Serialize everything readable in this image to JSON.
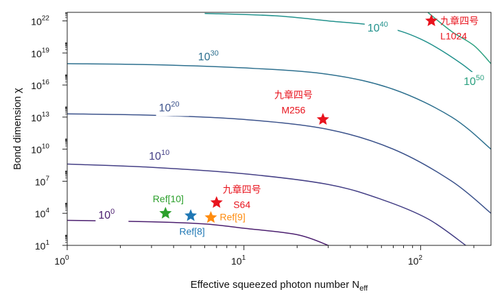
{
  "chart_data": {
    "type": "contour",
    "xlabel": "Effective squeezed photon number N",
    "xlabel_sub": "eff",
    "ylabel": "Bond dimension χ",
    "x_scale": "log",
    "y_scale": "log",
    "xlim": [
      1,
      250
    ],
    "ylim": [
      10,
      6.3e+22
    ],
    "x_ticks": [
      {
        "base": "10",
        "exp": "0",
        "value": 1
      },
      {
        "base": "10",
        "exp": "1",
        "value": 10
      },
      {
        "base": "10",
        "exp": "2",
        "value": 100
      }
    ],
    "y_ticks": [
      {
        "base": "10",
        "exp": "1",
        "value": 10.0
      },
      {
        "base": "10",
        "exp": "4",
        "value": 10000.0
      },
      {
        "base": "10",
        "exp": "7",
        "value": 10000000.0
      },
      {
        "base": "10",
        "exp": "10",
        "value": 10000000000.0
      },
      {
        "base": "10",
        "exp": "13",
        "value": 10000000000000.0
      },
      {
        "base": "10",
        "exp": "16",
        "value": 1e+16
      },
      {
        "base": "10",
        "exp": "19",
        "value": 1e+19
      },
      {
        "base": "10",
        "exp": "22",
        "value": 1e+22
      }
    ],
    "contours": [
      {
        "base": "10",
        "exp": "0",
        "color": "#4a1d6e",
        "label_at": [
          1.5,
          3200.0
        ],
        "points": [
          [
            1,
            2200.0
          ],
          [
            3,
            1600.0
          ],
          [
            6,
            1000.0
          ],
          [
            10,
            400.0
          ],
          [
            20,
            100.0
          ],
          [
            30,
            10
          ]
        ]
      },
      {
        "base": "10",
        "exp": "10",
        "color": "#433e85",
        "label_at": [
          2.9,
          1000000000.0
        ],
        "points": [
          [
            1,
            400000000.0
          ],
          [
            3,
            200000000.0
          ],
          [
            10,
            50000000.0
          ],
          [
            30,
            5000000.0
          ],
          [
            60,
            200000.0
          ],
          [
            110,
            3000.0
          ],
          [
            180,
            10
          ]
        ]
      },
      {
        "base": "10",
        "exp": "20",
        "color": "#3b528b",
        "label_at": [
          3.3,
          35000000000000.0
        ],
        "points": [
          [
            1,
            20000000000000.0
          ],
          [
            3,
            15000000000000.0
          ],
          [
            10,
            6000000000000.0
          ],
          [
            30,
            700000000000.0
          ],
          [
            70,
            10000000000.0
          ],
          [
            150,
            10000000.0
          ],
          [
            250,
            10000.0
          ]
        ]
      },
      {
        "base": "10",
        "exp": "30",
        "color": "#2c6f8e",
        "label_at": [
          5.5,
          2e+18
        ],
        "points": [
          [
            1,
            1e+18
          ],
          [
            3,
            8e+17
          ],
          [
            10,
            4e+17
          ],
          [
            30,
            1e+17
          ],
          [
            70,
            4000000000000000.0
          ],
          [
            150,
            10000000000000.0
          ],
          [
            250,
            10000000000.0
          ]
        ]
      },
      {
        "base": "10",
        "exp": "40",
        "color": "#21918c",
        "label_at": [
          50,
          1e+21
        ],
        "points": [
          [
            6,
            5e+22
          ],
          [
            15,
            3e+22
          ],
          [
            30,
            1e+22
          ],
          [
            60,
            3e+21
          ],
          [
            100,
            2e+20
          ],
          [
            170,
            1e+18
          ],
          [
            250,
            5000000000000000.0
          ]
        ]
      },
      {
        "base": "10",
        "exp": "50",
        "color": "#2aa07f",
        "label_at": [
          175,
          1e+16
        ],
        "points": [
          [
            110,
            6e+22
          ],
          [
            150,
            1e+21
          ],
          [
            200,
            5e+19
          ],
          [
            250,
            1e+18
          ]
        ]
      }
    ],
    "points": [
      {
        "name": "Ref[10]",
        "x": 3.6,
        "y": 10000.0,
        "color": "#2ca02c",
        "label_lines": [
          "Ref[10]"
        ],
        "label_pos": "above"
      },
      {
        "name": "Ref[8]",
        "x": 5.0,
        "y": 6000.0,
        "color": "#1f77b4",
        "label_lines": [
          "Ref[8]"
        ],
        "label_pos": "below"
      },
      {
        "name": "Ref[9]",
        "x": 6.5,
        "y": 4000.0,
        "color": "#ff8c0f",
        "label_lines": [
          "Ref[9]"
        ],
        "label_pos": "right"
      },
      {
        "name": "九章四号 S64",
        "x": 7.0,
        "y": 100000.0,
        "color": "#e8141e",
        "label_lines": [
          "九章四号",
          "S64"
        ],
        "label_pos": "above-right"
      },
      {
        "name": "九章四号 M256",
        "x": 28,
        "y": 6000000000000.0,
        "color": "#e8141e",
        "label_lines": [
          "九章四号",
          "M256"
        ],
        "label_pos": "above-left"
      },
      {
        "name": "九章四号 L1024",
        "x": 115,
        "y": 1e+22,
        "color": "#e8141e",
        "label_lines": [
          "九章四号",
          "L1024"
        ],
        "label_pos": "right"
      }
    ]
  }
}
